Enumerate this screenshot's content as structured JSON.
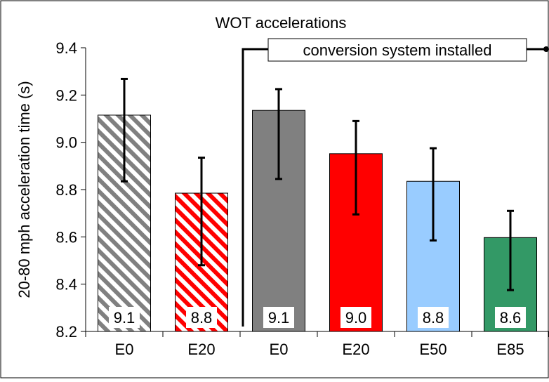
{
  "chart_data": {
    "type": "bar",
    "title": "WOT accelerations",
    "ylabel": "20-80 mph acceleration time (s)",
    "xlabel": "",
    "ylim": [
      8.2,
      9.4
    ],
    "y_ticks": [
      "8.2",
      "8.4",
      "8.6",
      "8.8",
      "9.0",
      "9.2",
      "9.4"
    ],
    "grid": false,
    "categories": [
      "E0",
      "E20",
      "E0",
      "E20",
      "E50",
      "E85"
    ],
    "values": [
      9.115,
      8.785,
      9.135,
      8.952,
      8.835,
      8.597
    ],
    "error_low": [
      8.835,
      8.48,
      8.845,
      8.695,
      8.585,
      8.375
    ],
    "error_high": [
      9.268,
      8.935,
      9.225,
      9.09,
      8.975,
      8.71
    ],
    "data_labels": [
      "9.1",
      "8.8",
      "9.1",
      "9.0",
      "8.8",
      "8.6"
    ],
    "bar_styles": [
      {
        "fill": "#808080",
        "pattern": "diagonal-stripes"
      },
      {
        "fill": "#ff0000",
        "pattern": "diagonal-stripes"
      },
      {
        "fill": "#808080",
        "pattern": "solid"
      },
      {
        "fill": "#ff0000",
        "pattern": "solid"
      },
      {
        "fill": "#99ccff",
        "pattern": "solid"
      },
      {
        "fill": "#339966",
        "pattern": "solid"
      }
    ],
    "annotation": {
      "text": "conversion system installed",
      "after_category_index": 1
    }
  }
}
